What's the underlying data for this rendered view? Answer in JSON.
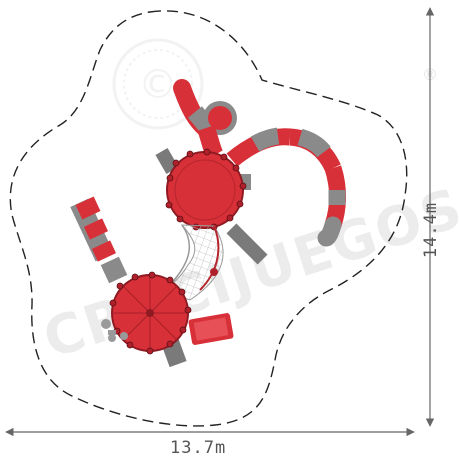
{
  "dimensions": {
    "width_label": "13.7m",
    "height_label": "14.4m"
  },
  "watermark": {
    "text": "CRUCIJUEGOS"
  },
  "colors": {
    "red": "#d83038",
    "dark_red": "#a8202a",
    "grey": "#8a8a8a",
    "dark_grey": "#555555",
    "boundary": "#222222",
    "dimension": "#666666"
  }
}
